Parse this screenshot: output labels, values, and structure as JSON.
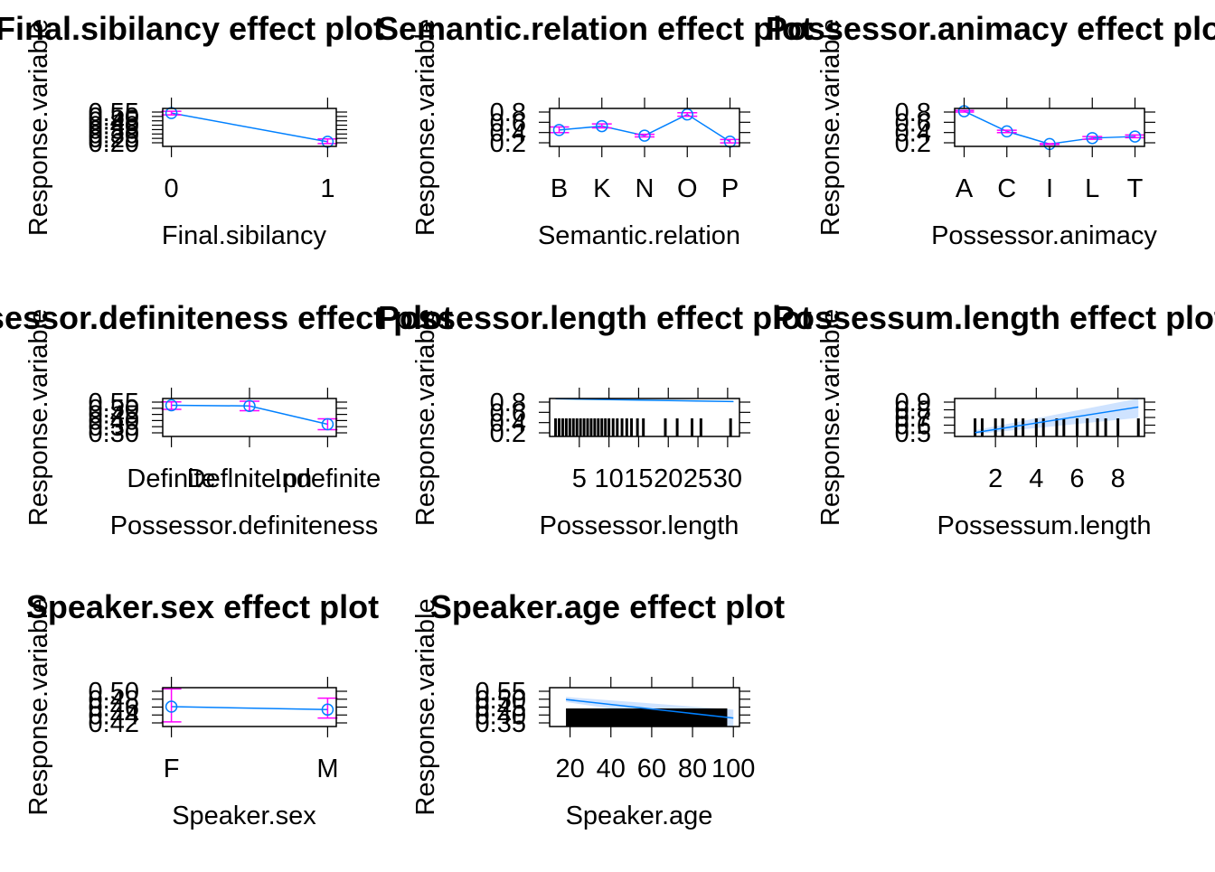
{
  "chart_data": [
    {
      "type": "line",
      "title": "Final.sibilancy effect plot",
      "xlabel": "Final.sibilancy",
      "ylabel": "Response.variable",
      "categories": [
        "0",
        "1"
      ],
      "values": [
        0.53,
        0.22
      ],
      "lower": [
        0.51,
        0.2
      ],
      "upper": [
        0.55,
        0.25
      ],
      "yticks": [
        "0.20",
        "0.25",
        "0.30",
        "0.35",
        "0.40",
        "0.45",
        "0.50",
        "0.55"
      ],
      "ylim": [
        0.17,
        0.58
      ]
    },
    {
      "type": "line",
      "title": "Semantic.relation effect plot",
      "xlabel": "Semantic.relation",
      "ylabel": "Response.variable",
      "categories": [
        "B",
        "K",
        "N",
        "O",
        "P"
      ],
      "values": [
        0.48,
        0.57,
        0.35,
        0.84,
        0.21
      ],
      "lower": [
        0.42,
        0.53,
        0.32,
        0.8,
        0.18
      ],
      "upper": [
        0.55,
        0.62,
        0.38,
        0.88,
        0.26
      ],
      "yticks": [
        "0.2",
        "0.4",
        "0.6",
        "0.8"
      ],
      "ylim": [
        0.1,
        0.98
      ]
    },
    {
      "type": "line",
      "title": "Possessor.animacy effect plot",
      "xlabel": "Possessor.animacy",
      "ylabel": "Response.variable",
      "categories": [
        "A",
        "C",
        "I",
        "L",
        "T"
      ],
      "values": [
        0.91,
        0.4,
        0.08,
        0.23,
        0.27
      ],
      "lower": [
        0.89,
        0.37,
        0.07,
        0.2,
        0.24
      ],
      "upper": [
        0.93,
        0.43,
        0.09,
        0.27,
        0.31
      ],
      "yticks": [
        "0.2",
        "0.4",
        "0.6",
        "0.8"
      ],
      "ylim": [
        0.02,
        0.98
      ]
    },
    {
      "type": "line",
      "title": "Possessor.definiteness effect plot",
      "xlabel": "Possessor.definiteness",
      "ylabel": "Response.variable",
      "categories": [
        "Definite",
        "Deflnite.pn",
        "Indefinite"
      ],
      "values": [
        0.51,
        0.505,
        0.37
      ],
      "lower": [
        0.48,
        0.47,
        0.33
      ],
      "upper": [
        0.535,
        0.54,
        0.41
      ],
      "yticks": [
        "0.30",
        "0.35",
        "0.40",
        "0.45",
        "0.50",
        "0.55"
      ],
      "ylim": [
        0.28,
        0.56
      ]
    },
    {
      "type": "line",
      "title": "Possessor.length effect plot",
      "xlabel": "Possessor.length",
      "ylabel": "Response.variable",
      "x": [
        1,
        31
      ],
      "values": [
        0.994,
        0.92
      ],
      "band_lower": [
        0.994,
        0.915
      ],
      "band_upper": [
        0.995,
        0.935
      ],
      "rug": [
        1,
        1.6,
        2.2,
        2.8,
        3.4,
        4,
        4.6,
        5.2,
        5.8,
        6.4,
        7,
        7.6,
        8.2,
        8.8,
        9.4,
        10,
        10.7,
        11.4,
        12.2,
        13,
        13.8,
        14.8,
        15.8,
        19.5,
        21.5,
        24,
        25.5,
        30.5
      ],
      "xticks": [
        "5",
        "10",
        "15",
        "20",
        "25",
        "30"
      ],
      "yticks": [
        "0.2",
        "0.4",
        "0.6",
        "0.8"
      ],
      "ylim": [
        0.0,
        1.0
      ]
    },
    {
      "type": "line",
      "title": "Possessum.length effect plot",
      "xlabel": "Possessum.length",
      "ylabel": "Response.variable",
      "x": [
        1,
        9
      ],
      "values": [
        0.53,
        0.86
      ],
      "band_lower": [
        0.51,
        0.72
      ],
      "band_upper": [
        0.56,
        0.97
      ],
      "rug": [
        1,
        1.35,
        2,
        2.35,
        3,
        3.35,
        4,
        4.35,
        5,
        5.35,
        6,
        6.5,
        7,
        7.4,
        8,
        9
      ],
      "xticks": [
        "2",
        "4",
        "6",
        "8"
      ],
      "yticks": [
        "0.5",
        "0.6",
        "0.7",
        "0.8",
        "0.9"
      ],
      "ylim": [
        0.48,
        0.97
      ]
    },
    {
      "type": "line",
      "title": "Speaker.sex effect plot",
      "xlabel": "Speaker.sex",
      "ylabel": "Response.variable",
      "categories": [
        "F",
        "M"
      ],
      "values": [
        0.465,
        0.458
      ],
      "lower": [
        0.429,
        0.438
      ],
      "upper": [
        0.507,
        0.485
      ],
      "yticks": [
        "0.42",
        "0.44",
        "0.46",
        "0.48",
        "0.50"
      ],
      "ylim": [
        0.418,
        0.51
      ]
    },
    {
      "type": "line",
      "title": "Speaker.age effect plot",
      "xlabel": "Speaker.age",
      "ylabel": "Response.variable",
      "x": [
        18,
        100
      ],
      "values": [
        0.49,
        0.38
      ],
      "band_lower": [
        0.475,
        0.33
      ],
      "band_upper": [
        0.505,
        0.43
      ],
      "rug_range": [
        18,
        97
      ],
      "xticks": [
        "20",
        "40",
        "60",
        "80",
        "100"
      ],
      "yticks": [
        "0.35",
        "0.40",
        "0.45",
        "0.50",
        "0.55"
      ],
      "ylim": [
        0.33,
        0.56
      ]
    }
  ],
  "colors": {
    "line": "#0080ff",
    "errorbar": "#ff00ff",
    "band": "#cfe3ff",
    "axis": "#000000"
  }
}
